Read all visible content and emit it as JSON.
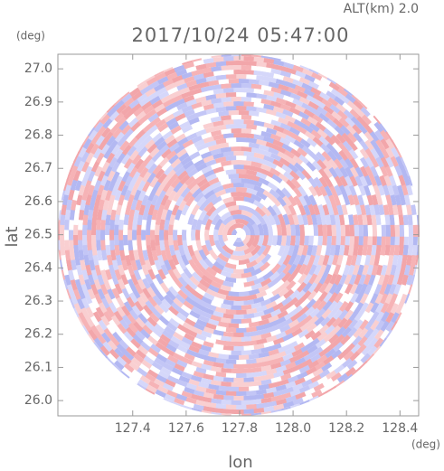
{
  "chart_data": {
    "type": "heatmap",
    "title": "2017/10/24 05:47:00",
    "annotation": "ALT(km) 2.0",
    "x_label": "lon",
    "y_label": "lat",
    "x_unit": "(deg)",
    "y_unit": "(deg)",
    "xlim": [
      127.12,
      128.47
    ],
    "ylim": [
      25.954,
      27.044
    ],
    "xticks": [
      127.4,
      127.6,
      127.8,
      {
        "value": 128,
        "label": "128.0"
      },
      128.2,
      128.4
    ],
    "yticks": [
      {
        "value": 26,
        "label": "26.0"
      },
      26.1,
      26.2,
      26.3,
      26.4,
      26.5,
      26.6,
      26.7,
      26.8,
      26.9,
      {
        "value": 27,
        "label": "27.0"
      }
    ]
  }
}
